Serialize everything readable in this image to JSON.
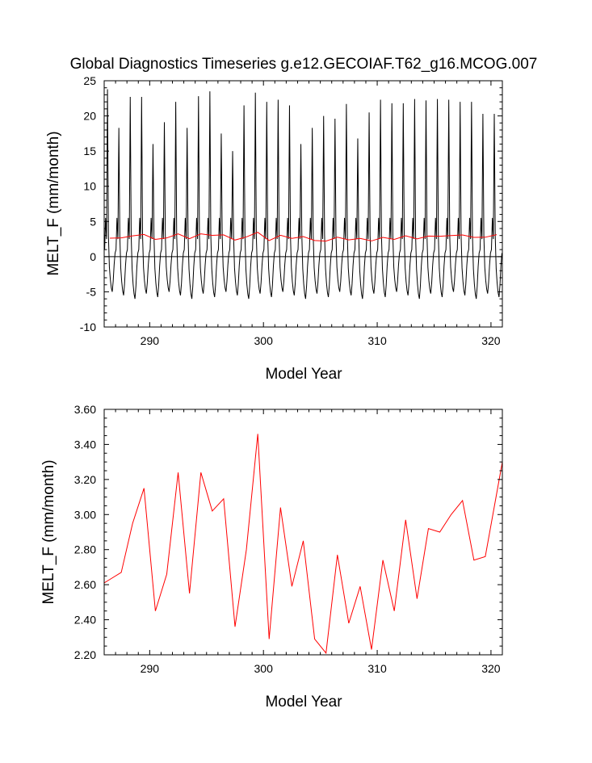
{
  "title": "Global Diagnostics Timeseries g.e12.GECOIAF.T62_g16.MCOG.007",
  "colors": {
    "monthly_line": "#000000",
    "annual_line": "#ff0000",
    "axis": "#000000"
  },
  "chart_data": [
    {
      "type": "line",
      "name": "monthly-timeseries",
      "title": "Global Diagnostics Timeseries g.e12.GECOIAF.T62_g16.MCOG.007",
      "xlabel": "Model Year",
      "ylabel": "MELT_F (mm/month)",
      "xlim": [
        286,
        321
      ],
      "ylim": [
        -10,
        25
      ],
      "xticks": [
        290,
        300,
        310,
        320
      ],
      "xtick_labels": [
        "290",
        "300",
        "310",
        "320"
      ],
      "yticks": [
        -10,
        -5,
        0,
        5,
        10,
        15,
        20,
        25
      ],
      "ytick_labels": [
        "-10",
        "-5",
        "0",
        "5",
        "10",
        "15",
        "20",
        "25"
      ],
      "zero_line": true,
      "series": [
        {
          "name": "monthly",
          "color": "#000000",
          "start_year": 286.04,
          "months_per_year": 12,
          "annual_peaks": [
            23.8,
            18.3,
            22.7,
            22.7,
            16.0,
            19.1,
            22.0,
            18.3,
            22.8,
            23.5,
            17.5,
            15.0,
            21.5,
            23.3,
            22.0,
            22.3,
            21.5,
            16.0,
            18.3,
            20.0,
            19.6,
            21.7,
            16.8,
            20.5,
            22.3,
            21.8,
            21.8,
            22.4,
            22.2,
            22.4,
            22.3,
            22.0,
            22.0,
            20.3,
            20.3
          ],
          "monthly_shape": [
            0.1,
            0.55,
            0.25,
            1.0,
            0.3,
            -0.25,
            -0.55,
            -0.75,
            -0.85,
            -0.6,
            -0.2,
            0.05
          ],
          "secondary_peak": 5.5,
          "trough": -5.0
        },
        {
          "name": "annual-mean-overlay",
          "color": "#ff0000",
          "x": [
            286.5,
            287.5,
            288.5,
            289.5,
            290.5,
            291.5,
            292.5,
            293.5,
            294.5,
            295.5,
            296.5,
            297.5,
            298.5,
            299.5,
            300.5,
            301.5,
            302.5,
            303.5,
            304.5,
            305.5,
            306.5,
            307.5,
            308.5,
            309.5,
            310.5,
            311.5,
            312.5,
            313.5,
            314.5,
            315.5,
            316.5,
            317.5,
            318.5,
            319.5,
            320.5
          ],
          "y": [
            2.63,
            2.67,
            2.95,
            3.15,
            2.45,
            2.66,
            3.24,
            2.55,
            3.24,
            3.02,
            3.09,
            2.36,
            2.8,
            3.46,
            2.29,
            3.04,
            2.59,
            2.85,
            2.29,
            2.21,
            2.77,
            2.38,
            2.59,
            2.23,
            2.74,
            2.45,
            2.97,
            2.52,
            2.92,
            2.9,
            3.0,
            3.08,
            2.74,
            2.76,
            3.12
          ]
        }
      ]
    },
    {
      "type": "line",
      "name": "annual-timeseries",
      "title": "",
      "xlabel": "Model Year",
      "ylabel": "MELT_F (mm/month)",
      "xlim": [
        286,
        321
      ],
      "ylim": [
        2.2,
        3.6
      ],
      "xticks": [
        290,
        300,
        310,
        320
      ],
      "xtick_labels": [
        "290",
        "300",
        "310",
        "320"
      ],
      "yticks": [
        2.2,
        2.4,
        2.6,
        2.8,
        3.0,
        3.2,
        3.4,
        3.6
      ],
      "ytick_labels": [
        "2.20",
        "2.40",
        "2.60",
        "2.80",
        "3.00",
        "3.20",
        "3.40",
        "3.60"
      ],
      "series": [
        {
          "name": "annual-mean",
          "color": "#ff0000",
          "x": [
            286.5,
            287.5,
            288.5,
            289.5,
            290.5,
            291.5,
            292.5,
            293.5,
            294.5,
            295.5,
            296.5,
            297.5,
            298.5,
            299.5,
            300.5,
            301.5,
            302.5,
            303.5,
            304.5,
            305.5,
            306.5,
            307.5,
            308.5,
            309.5,
            310.5,
            311.5,
            312.5,
            313.5,
            314.5,
            315.5,
            316.5,
            317.5,
            318.5,
            319.5,
            320.5
          ],
          "y": [
            2.63,
            2.67,
            2.95,
            3.15,
            2.45,
            2.66,
            3.24,
            2.55,
            3.24,
            3.02,
            3.09,
            2.36,
            2.8,
            3.46,
            2.29,
            3.04,
            2.59,
            2.85,
            2.29,
            2.21,
            2.77,
            2.38,
            2.59,
            2.23,
            2.74,
            2.45,
            2.97,
            2.52,
            2.92,
            2.9,
            3.0,
            3.08,
            2.74,
            2.76,
            3.12
          ]
        }
      ]
    }
  ]
}
